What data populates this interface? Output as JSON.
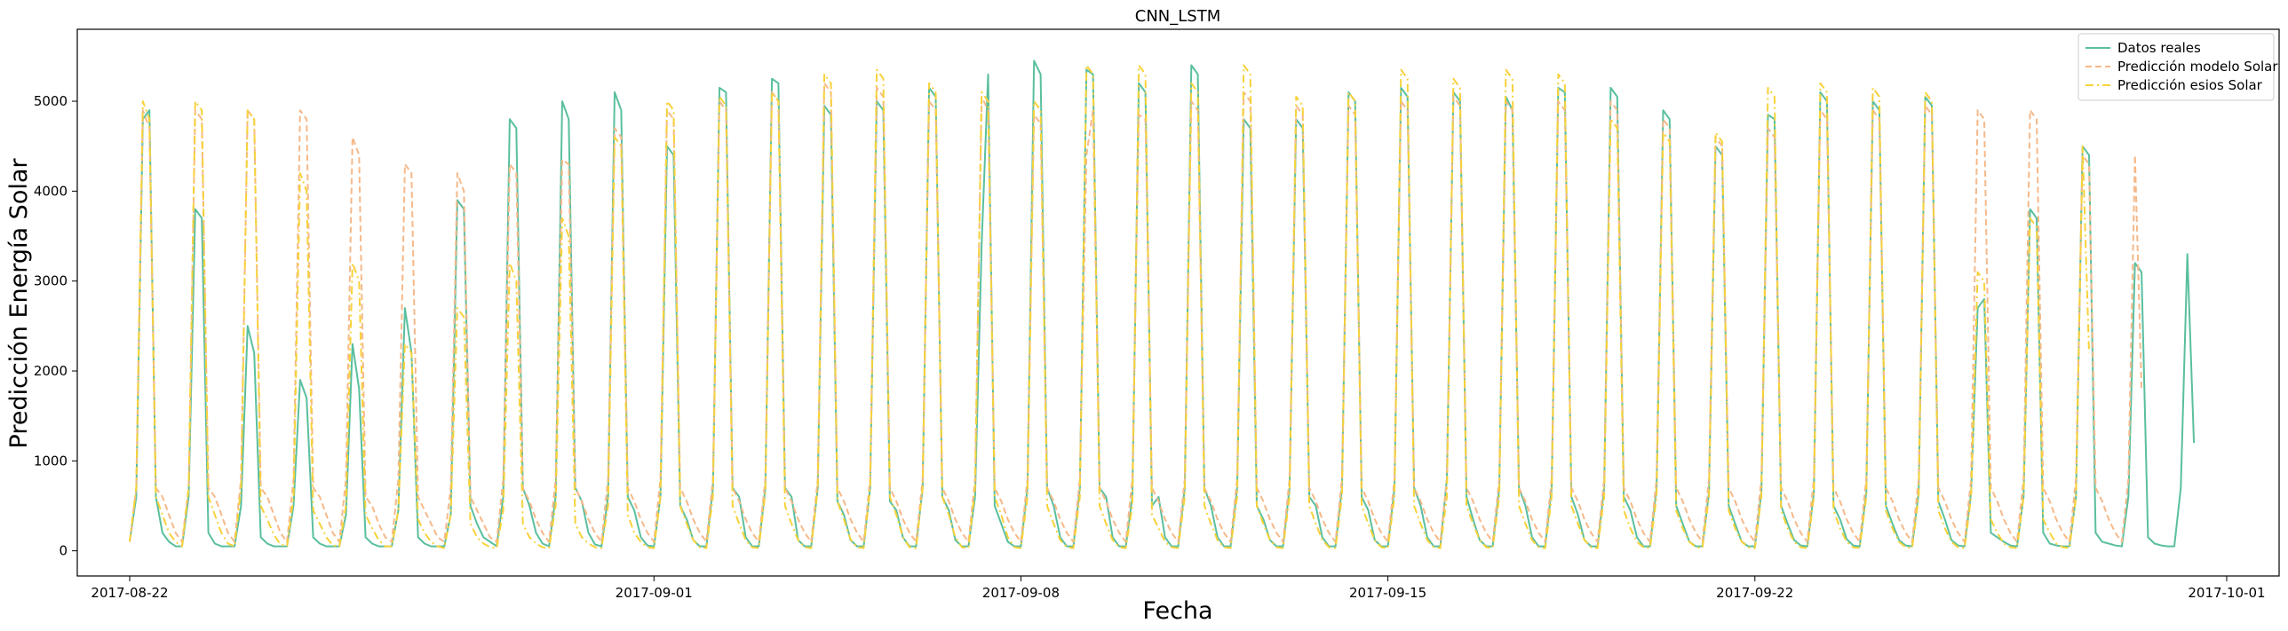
{
  "chart_data": {
    "type": "line",
    "title": "CNN_LSTM",
    "xlabel": "Fecha",
    "ylabel": "Predicción Energía Solar",
    "x_start": "2017-08-22T00:00",
    "x_end": "2017-09-29T12:00",
    "x_resolution": "3 hours",
    "xlim": [
      "2017-08-21",
      "2017-10-02"
    ],
    "ylim": [
      -280,
      5800
    ],
    "x_ticks": [
      "2017-08-22",
      "2017-09-01",
      "2017-09-08",
      "2017-09-15",
      "2017-09-22",
      "2017-10-01"
    ],
    "y_ticks": [
      0,
      1000,
      2000,
      3000,
      4000,
      5000
    ],
    "grid": false,
    "legend_position": "top-right",
    "series": [
      {
        "name": "Datos reales",
        "color": "#5abf9f",
        "dash": "solid",
        "values": [
          100,
          600,
          4800,
          4900,
          600,
          200,
          100,
          50,
          50,
          600,
          3800,
          3700,
          200,
          80,
          50,
          50,
          50,
          500,
          2500,
          2200,
          150,
          80,
          50,
          50,
          50,
          500,
          1900,
          1700,
          150,
          80,
          50,
          50,
          50,
          400,
          2300,
          1800,
          150,
          80,
          50,
          50,
          50,
          450,
          2700,
          2200,
          150,
          80,
          50,
          50,
          50,
          400,
          3900,
          3800,
          500,
          300,
          150,
          100,
          50,
          600,
          4800,
          4700,
          700,
          500,
          200,
          80,
          50,
          600,
          5000,
          4800,
          700,
          550,
          200,
          70,
          50,
          600,
          5100,
          4900,
          600,
          450,
          150,
          60,
          50,
          600,
          4500,
          4400,
          500,
          350,
          120,
          50,
          50,
          700,
          5150,
          5100,
          700,
          600,
          150,
          50,
          50,
          700,
          5250,
          5200,
          700,
          600,
          120,
          50,
          50,
          700,
          4950,
          4850,
          550,
          400,
          120,
          50,
          50,
          700,
          5000,
          4900,
          550,
          450,
          150,
          50,
          50,
          700,
          5150,
          5050,
          600,
          450,
          120,
          50,
          50,
          600,
          3400,
          5300,
          500,
          300,
          100,
          50,
          50,
          700,
          5450,
          5300,
          700,
          500,
          150,
          50,
          50,
          700,
          5350,
          5300,
          700,
          600,
          150,
          50,
          50,
          600,
          5200,
          5100,
          500,
          600,
          150,
          50,
          50,
          700,
          5400,
          5300,
          700,
          500,
          150,
          50,
          50,
          700,
          4800,
          4700,
          500,
          350,
          120,
          50,
          50,
          700,
          4800,
          4700,
          600,
          500,
          150,
          50,
          50,
          700,
          5100,
          5000,
          600,
          450,
          120,
          50,
          50,
          700,
          5150,
          5050,
          700,
          500,
          150,
          50,
          50,
          800,
          5100,
          5000,
          600,
          350,
          120,
          50,
          50,
          700,
          5050,
          4900,
          700,
          500,
          150,
          50,
          50,
          700,
          5150,
          5100,
          600,
          400,
          120,
          50,
          50,
          700,
          5150,
          5050,
          600,
          450,
          150,
          50,
          50,
          700,
          4900,
          4800,
          500,
          300,
          100,
          50,
          50,
          650,
          4500,
          4400,
          500,
          300,
          100,
          50,
          50,
          650,
          4850,
          4800,
          500,
          300,
          120,
          60,
          50,
          650,
          5100,
          5000,
          500,
          350,
          130,
          60,
          50,
          650,
          5000,
          4900,
          500,
          300,
          120,
          60,
          50,
          650,
          5050,
          4950,
          550,
          350,
          120,
          60,
          50,
          650,
          2700,
          2800,
          200,
          150,
          100,
          60,
          50,
          600,
          3800,
          3700,
          200,
          80,
          60,
          50,
          50,
          600,
          4500,
          4400,
          200,
          100,
          80,
          60,
          50,
          600,
          3200,
          3100,
          150,
          80,
          60,
          50,
          50,
          700,
          3300,
          1200
        ]
      },
      {
        "name": "Predicción modelo Solar",
        "color": "#f5b98a",
        "dash": "dashed",
        "values": [
          100,
          700,
          4900,
          4700,
          700,
          600,
          400,
          200,
          100,
          700,
          4900,
          4800,
          700,
          600,
          400,
          200,
          100,
          800,
          4900,
          4800,
          700,
          600,
          400,
          200,
          100,
          800,
          4900,
          4800,
          700,
          600,
          400,
          200,
          100,
          800,
          4600,
          4400,
          600,
          500,
          300,
          150,
          100,
          800,
          4300,
          4200,
          600,
          450,
          300,
          150,
          100,
          700,
          4200,
          4000,
          600,
          450,
          300,
          150,
          100,
          800,
          4300,
          4200,
          700,
          550,
          350,
          200,
          100,
          800,
          4350,
          4300,
          700,
          550,
          350,
          200,
          100,
          800,
          4700,
          4600,
          700,
          550,
          350,
          200,
          100,
          800,
          4900,
          4800,
          700,
          550,
          350,
          200,
          100,
          800,
          5000,
          4900,
          700,
          550,
          350,
          200,
          100,
          800,
          5100,
          5000,
          700,
          550,
          350,
          200,
          100,
          800,
          5200,
          5100,
          700,
          550,
          350,
          200,
          100,
          800,
          5150,
          5050,
          700,
          550,
          350,
          200,
          100,
          800,
          5000,
          4900,
          700,
          550,
          350,
          200,
          100,
          800,
          5050,
          4900,
          700,
          550,
          350,
          200,
          100,
          800,
          4850,
          4750,
          700,
          550,
          350,
          200,
          100,
          800,
          4400,
          4900,
          700,
          550,
          350,
          200,
          100,
          800,
          4850,
          4800,
          700,
          550,
          350,
          200,
          100,
          800,
          5000,
          4900,
          700,
          550,
          350,
          200,
          100,
          800,
          5100,
          5000,
          700,
          550,
          350,
          200,
          100,
          800,
          4950,
          4850,
          700,
          550,
          350,
          200,
          100,
          800,
          4950,
          4850,
          700,
          550,
          350,
          200,
          100,
          800,
          5000,
          4900,
          700,
          550,
          350,
          200,
          100,
          800,
          5050,
          4950,
          700,
          550,
          350,
          200,
          100,
          800,
          5000,
          4900,
          700,
          550,
          350,
          200,
          100,
          800,
          5000,
          4900,
          700,
          550,
          350,
          200,
          100,
          800,
          5000,
          4900,
          700,
          550,
          350,
          200,
          100,
          800,
          4800,
          4700,
          700,
          550,
          350,
          200,
          100,
          800,
          4600,
          4500,
          700,
          550,
          350,
          200,
          100,
          800,
          4700,
          4600,
          700,
          550,
          350,
          200,
          100,
          800,
          4900,
          4800,
          700,
          550,
          350,
          200,
          100,
          800,
          4900,
          4800,
          700,
          550,
          350,
          200,
          100,
          800,
          4950,
          4850,
          700,
          550,
          350,
          200,
          100,
          800,
          4900,
          4800,
          700,
          550,
          350,
          200,
          100,
          800,
          4900,
          4800,
          700,
          550,
          350,
          200,
          100,
          800,
          4400,
          4300,
          700,
          550,
          350,
          200,
          100,
          800,
          4400,
          1800
        ]
      },
      {
        "name": "Predicción esios Solar",
        "color": "#f7d23a",
        "dash": "dashdot",
        "values": [
          100,
          700,
          5000,
          4800,
          600,
          400,
          200,
          100,
          50,
          700,
          5000,
          4900,
          600,
          400,
          200,
          80,
          50,
          700,
          4900,
          4800,
          500,
          350,
          180,
          70,
          50,
          600,
          4200,
          4000,
          450,
          300,
          150,
          60,
          50,
          500,
          3200,
          3000,
          400,
          250,
          120,
          50,
          50,
          450,
          2300,
          2200,
          350,
          200,
          100,
          50,
          30,
          400,
          2700,
          2600,
          300,
          150,
          80,
          40,
          30,
          450,
          3200,
          3000,
          300,
          150,
          80,
          40,
          30,
          500,
          3700,
          3500,
          300,
          150,
          80,
          40,
          30,
          500,
          4600,
          4500,
          400,
          200,
          100,
          40,
          30,
          600,
          5000,
          4900,
          500,
          300,
          120,
          40,
          30,
          600,
          5050,
          4950,
          500,
          300,
          120,
          40,
          30,
          650,
          5100,
          5000,
          500,
          300,
          120,
          40,
          30,
          700,
          5300,
          5200,
          550,
          350,
          130,
          40,
          30,
          700,
          5350,
          5250,
          600,
          400,
          150,
          40,
          30,
          700,
          5200,
          5100,
          600,
          400,
          150,
          40,
          30,
          700,
          5100,
          5000,
          600,
          400,
          150,
          40,
          30,
          600,
          5000,
          4900,
          500,
          300,
          120,
          40,
          30,
          600,
          5400,
          5300,
          500,
          300,
          120,
          40,
          30,
          500,
          5400,
          5300,
          400,
          250,
          100,
          40,
          30,
          600,
          5200,
          5100,
          500,
          300,
          120,
          40,
          30,
          600,
          5400,
          5300,
          500,
          300,
          120,
          40,
          30,
          600,
          5050,
          4950,
          500,
          300,
          120,
          40,
          30,
          600,
          5100,
          5000,
          500,
          300,
          120,
          40,
          30,
          600,
          5350,
          5250,
          500,
          300,
          120,
          40,
          30,
          600,
          5250,
          5150,
          500,
          300,
          120,
          40,
          30,
          600,
          5350,
          5250,
          500,
          300,
          120,
          40,
          30,
          600,
          5300,
          5200,
          500,
          300,
          120,
          40,
          30,
          600,
          4800,
          4700,
          450,
          250,
          100,
          40,
          30,
          600,
          4650,
          4550,
          450,
          250,
          100,
          40,
          30,
          600,
          4650,
          4550,
          450,
          250,
          100,
          40,
          30,
          600,
          5150,
          5050,
          450,
          250,
          100,
          40,
          30,
          600,
          5200,
          5100,
          450,
          250,
          100,
          40,
          30,
          600,
          5150,
          5050,
          450,
          250,
          100,
          40,
          30,
          600,
          5100,
          5000,
          450,
          250,
          100,
          40,
          30,
          600,
          3100,
          3000,
          350,
          200,
          80,
          40,
          30,
          600,
          3700,
          3600,
          350,
          200,
          80,
          40,
          30,
          600,
          4500,
          2200
        ]
      }
    ]
  }
}
